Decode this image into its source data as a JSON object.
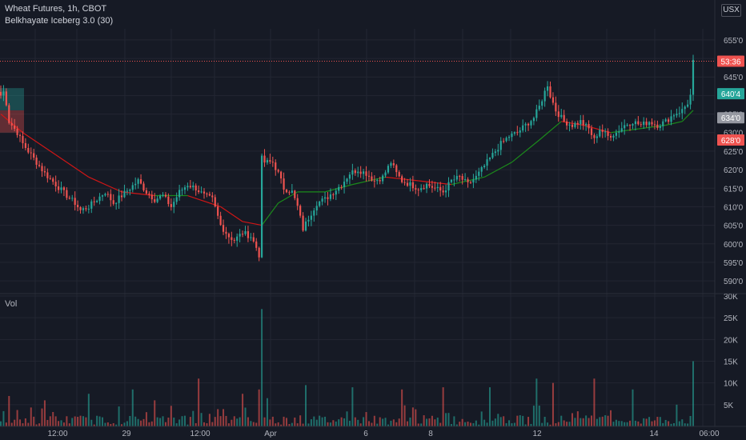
{
  "header": {
    "symbol_line": "Wheat Futures, 1h, CBOT",
    "indicator_line": "Belkhayate Iceberg 3.0 (30)",
    "currency": "USX",
    "volume_label": "Vol"
  },
  "colors": {
    "background": "#161a25",
    "up": "#26a69a",
    "down": "#ef5350",
    "grid": "#232632",
    "text": "#b2b5be",
    "ma_up": "#1b8a1b",
    "ma_down": "#d01616"
  },
  "chart_data": [
    {
      "type": "candlestick",
      "panel": "price",
      "title": "Wheat Futures, 1h, CBOT",
      "indicator": "Belkhayate Iceberg 3.0 (30)",
      "y_ticks": [
        "590'0",
        "595'0",
        "600'0",
        "605'0",
        "610'0",
        "615'0",
        "620'0",
        "625'0",
        "630'0",
        "635'0",
        "640'0",
        "645'0",
        "650'0",
        "655'0"
      ],
      "y_range": [
        587,
        658
      ],
      "x_ticks": [
        "12:00",
        "29",
        "12:00",
        "Apr",
        "6",
        "8",
        "12",
        "14",
        "06:00"
      ],
      "grid": true,
      "price_labels": [
        {
          "text": "53:36",
          "value": 649.25,
          "kind": "last-price-countdown",
          "color": "#ef5350"
        },
        {
          "text": "640'4",
          "value": 640.5,
          "kind": "marker",
          "color": "#26a69a"
        },
        {
          "text": "634'0",
          "value": 634.0,
          "kind": "marker",
          "color": "#9598a1"
        },
        {
          "text": "628'0",
          "value": 628.0,
          "kind": "marker",
          "color": "#ef5350"
        }
      ],
      "last_price": 649.25,
      "ohlc_anchors": [
        [
          0,
          640
        ],
        [
          1,
          641
        ],
        [
          2,
          638
        ],
        [
          3,
          633
        ],
        [
          6,
          630
        ],
        [
          8,
          627
        ],
        [
          10,
          625
        ],
        [
          13,
          622
        ],
        [
          16,
          619
        ],
        [
          20,
          616
        ],
        [
          24,
          613
        ],
        [
          27,
          611
        ],
        [
          29,
          609
        ],
        [
          32,
          610
        ],
        [
          35,
          612
        ],
        [
          38,
          614
        ],
        [
          41,
          611
        ],
        [
          44,
          613
        ],
        [
          47,
          615
        ],
        [
          50,
          617
        ],
        [
          53,
          614
        ],
        [
          56,
          612
        ],
        [
          59,
          613
        ],
        [
          62,
          610
        ],
        [
          65,
          614
        ],
        [
          68,
          616
        ],
        [
          71,
          615
        ],
        [
          74,
          613
        ],
        [
          77,
          612
        ],
        [
          80,
          605
        ],
        [
          83,
          602
        ],
        [
          85,
          601
        ],
        [
          88,
          603
        ],
        [
          91,
          602
        ],
        [
          93,
          599
        ],
        [
          94,
          597
        ],
        [
          95,
          623
        ],
        [
          96,
          622
        ],
        [
          99,
          622
        ],
        [
          101,
          619
        ],
        [
          103,
          615
        ],
        [
          106,
          614
        ],
        [
          108,
          610
        ],
        [
          110,
          604
        ],
        [
          112,
          607
        ],
        [
          115,
          611
        ],
        [
          118,
          612
        ],
        [
          121,
          614
        ],
        [
          124,
          616
        ],
        [
          127,
          619
        ],
        [
          130,
          620
        ],
        [
          133,
          619
        ],
        [
          136,
          617
        ],
        [
          139,
          618
        ],
        [
          142,
          622
        ],
        [
          144,
          619
        ],
        [
          146,
          617
        ],
        [
          149,
          616
        ],
        [
          152,
          615
        ],
        [
          155,
          616
        ],
        [
          158,
          615
        ],
        [
          161,
          614
        ],
        [
          164,
          617
        ],
        [
          167,
          618
        ],
        [
          170,
          616
        ],
        [
          173,
          618
        ],
        [
          176,
          621
        ],
        [
          179,
          624
        ],
        [
          182,
          627
        ],
        [
          185,
          629
        ],
        [
          188,
          630
        ],
        [
          191,
          632
        ],
        [
          194,
          634
        ],
        [
          196,
          637
        ],
        [
          198,
          641
        ],
        [
          199,
          643
        ],
        [
          200,
          640
        ],
        [
          202,
          636
        ],
        [
          205,
          633
        ],
        [
          208,
          632
        ],
        [
          211,
          633
        ],
        [
          214,
          631
        ],
        [
          216,
          628
        ],
        [
          218,
          631
        ],
        [
          221,
          629
        ],
        [
          224,
          630
        ],
        [
          227,
          632
        ],
        [
          230,
          633
        ],
        [
          233,
          632
        ],
        [
          236,
          633
        ],
        [
          239,
          632
        ],
        [
          242,
          633
        ],
        [
          245,
          635
        ],
        [
          248,
          636
        ],
        [
          250,
          638
        ],
        [
          251,
          640
        ],
        [
          252,
          649
        ]
      ],
      "moving_average": [
        [
          0,
          635
        ],
        [
          8,
          630
        ],
        [
          20,
          624
        ],
        [
          32,
          618
        ],
        [
          44,
          614
        ],
        [
          56,
          613
        ],
        [
          68,
          613
        ],
        [
          80,
          610
        ],
        [
          88,
          606
        ],
        [
          95,
          605
        ],
        [
          101,
          611
        ],
        [
          108,
          614
        ],
        [
          118,
          614
        ],
        [
          128,
          616
        ],
        [
          140,
          618
        ],
        [
          152,
          617
        ],
        [
          164,
          616
        ],
        [
          176,
          618
        ],
        [
          186,
          622
        ],
        [
          196,
          628
        ],
        [
          204,
          633
        ],
        [
          212,
          632
        ],
        [
          222,
          630
        ],
        [
          232,
          631
        ],
        [
          242,
          632
        ],
        [
          248,
          633
        ],
        [
          252,
          636
        ]
      ]
    },
    {
      "type": "bar",
      "panel": "volume",
      "title": "Vol",
      "y_ticks": [
        "5K",
        "10K",
        "15K",
        "20K",
        "25K",
        "30K"
      ],
      "y_range": [
        0,
        30000
      ],
      "grid": true,
      "volume_spikes": [
        [
          3,
          7000
        ],
        [
          16,
          6000
        ],
        [
          32,
          7500
        ],
        [
          48,
          8500
        ],
        [
          56,
          6000
        ],
        [
          72,
          11000
        ],
        [
          88,
          7500
        ],
        [
          94,
          8500
        ],
        [
          95,
          27000
        ],
        [
          97,
          6500
        ],
        [
          111,
          9500
        ],
        [
          128,
          9000
        ],
        [
          146,
          8500
        ],
        [
          161,
          9000
        ],
        [
          178,
          9000
        ],
        [
          195,
          11000
        ],
        [
          201,
          10000
        ],
        [
          216,
          11000
        ],
        [
          230,
          8500
        ],
        [
          246,
          5000
        ],
        [
          252,
          15000
        ]
      ]
    }
  ]
}
